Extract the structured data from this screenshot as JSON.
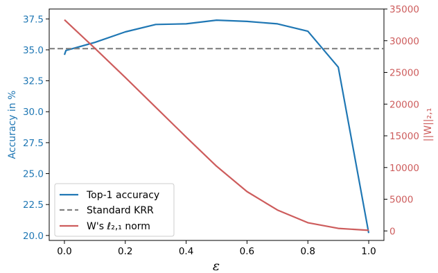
{
  "chart_data": {
    "type": "line",
    "x": [
      0.0,
      0.005,
      0.1,
      0.2,
      0.3,
      0.4,
      0.5,
      0.6,
      0.7,
      0.8,
      0.9,
      1.0
    ],
    "xlabel": "ε",
    "xlim": [
      -0.05,
      1.05
    ],
    "xticks": [
      0.0,
      0.2,
      0.4,
      0.6,
      0.8,
      1.0
    ],
    "xtick_labels": [
      "0.0",
      "0.2",
      "0.4",
      "0.6",
      "0.8",
      "1.0"
    ],
    "left_axis": {
      "label": "Accuracy in %",
      "color": "#1f77b4",
      "ylim": [
        19.6,
        38.3
      ],
      "ticks": [
        20.0,
        22.5,
        25.0,
        27.5,
        30.0,
        32.5,
        35.0,
        37.5
      ],
      "tick_labels": [
        "20.0",
        "22.5",
        "25.0",
        "27.5",
        "30.0",
        "32.5",
        "35.0",
        "37.5"
      ]
    },
    "right_axis": {
      "label": "||W||₂,₁",
      "color": "#cd5c5c",
      "ylim": [
        -1500,
        35000
      ],
      "ticks": [
        0,
        5000,
        10000,
        15000,
        20000,
        25000,
        30000,
        35000
      ],
      "tick_labels": [
        "0",
        "5000",
        "10000",
        "15000",
        "20000",
        "25000",
        "30000",
        "35000"
      ]
    },
    "series": [
      {
        "name": "Top-1 accuracy",
        "axis": "left",
        "color": "#1f77b4",
        "style": "solid",
        "x": [
          0.0,
          0.005,
          0.1,
          0.2,
          0.3,
          0.4,
          0.5,
          0.6,
          0.7,
          0.8,
          0.9,
          1.0
        ],
        "values": [
          34.6,
          34.95,
          35.6,
          36.45,
          37.05,
          37.1,
          37.4,
          37.3,
          37.1,
          36.5,
          33.6,
          20.2
        ]
      },
      {
        "name": "Standard KRR",
        "axis": "left",
        "color": "#808080",
        "style": "dashed",
        "x": [
          -0.05,
          1.05
        ],
        "values": [
          35.1,
          35.1
        ]
      },
      {
        "name": "W's ℓ₂,₁ norm",
        "axis": "right",
        "color": "#cd5c5c",
        "style": "solid",
        "x": [
          0.0,
          0.1,
          0.2,
          0.3,
          0.4,
          0.5,
          0.6,
          0.7,
          0.8,
          0.9,
          1.0
        ],
        "values": [
          33300,
          28800,
          24200,
          19500,
          14800,
          10200,
          6200,
          3300,
          1300,
          400,
          100
        ]
      }
    ],
    "legend": {
      "placement": "lower-left",
      "entries": [
        "Top-1 accuracy",
        "Standard KRR",
        "W's ℓ₂,₁ norm"
      ]
    },
    "grid": false
  }
}
